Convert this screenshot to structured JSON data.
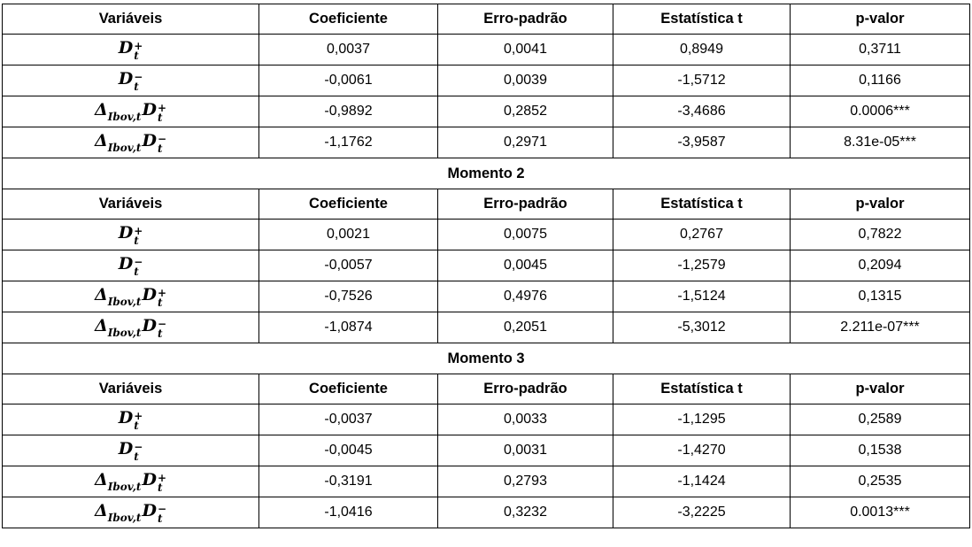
{
  "headers": [
    "Variáveis",
    "Coeficiente",
    "Erro-padrão",
    "Estatística t",
    "p-valor"
  ],
  "variables": [
    {
      "base": "D",
      "sup": "+",
      "sub": "t",
      "prefix": "",
      "prefix_sub": ""
    },
    {
      "base": "D",
      "sup": "−",
      "sub": "t",
      "prefix": "",
      "prefix_sub": ""
    },
    {
      "base": "D",
      "sup": "+",
      "sub": "t",
      "prefix": "Δ",
      "prefix_sub": "Ibov,t"
    },
    {
      "base": "D",
      "sup": "−",
      "sub": "t",
      "prefix": "Δ",
      "prefix_sub": "Ibov,t"
    }
  ],
  "sections": [
    {
      "title": "",
      "rows": [
        {
          "coef": "0,0037",
          "se": "0,0041",
          "t": "0,8949",
          "p": "0,3711"
        },
        {
          "coef": "-0,0061",
          "se": "0,0039",
          "t": "-1,5712",
          "p": "0,1166"
        },
        {
          "coef": "-0,9892",
          "se": "0,2852",
          "t": "-3,4686",
          "p": "0.0006***"
        },
        {
          "coef": "-1,1762",
          "se": "0,2971",
          "t": "-3,9587",
          "p": "8.31e-05***"
        }
      ]
    },
    {
      "title": "Momento 2",
      "rows": [
        {
          "coef": "0,0021",
          "se": "0,0075",
          "t": "0,2767",
          "p": "0,7822"
        },
        {
          "coef": "-0,0057",
          "se": "0,0045",
          "t": "-1,2579",
          "p": "0,2094"
        },
        {
          "coef": "-0,7526",
          "se": "0,4976",
          "t": "-1,5124",
          "p": "0,1315"
        },
        {
          "coef": "-1,0874",
          "se": "0,2051",
          "t": "-5,3012",
          "p": "2.211e-07***"
        }
      ]
    },
    {
      "title": "Momento 3",
      "rows": [
        {
          "coef": "-0,0037",
          "se": "0,0033",
          "t": "-1,1295",
          "p": "0,2589"
        },
        {
          "coef": "-0,0045",
          "se": "0,0031",
          "t": "-1,4270",
          "p": "0,1538"
        },
        {
          "coef": "-0,3191",
          "se": "0,2793",
          "t": "-1,1424",
          "p": "0,2535"
        },
        {
          "coef": "-1,0416",
          "se": "0,3232",
          "t": "-3,2225",
          "p": "0.0013***"
        }
      ]
    }
  ]
}
